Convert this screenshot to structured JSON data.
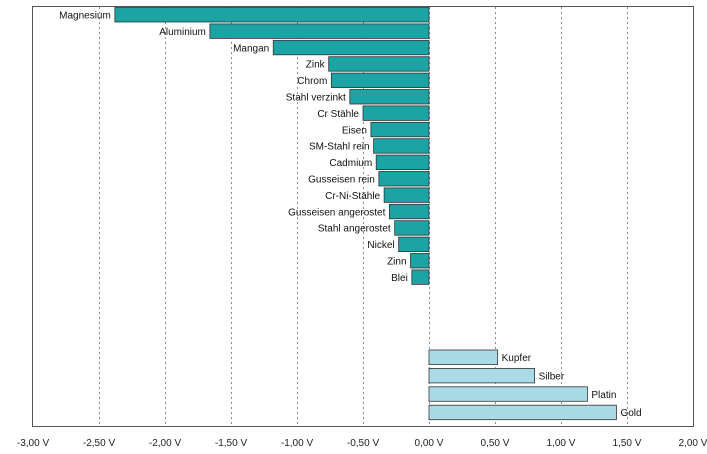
{
  "chart_data": {
    "type": "bar",
    "orientation": "horizontal",
    "title": "",
    "xlabel": "",
    "ylabel": "",
    "xlim": [
      -3,
      2
    ],
    "grid": true,
    "legend": "none",
    "x_ticks": [
      -3,
      -2.5,
      -2,
      -1.5,
      -1,
      -0.5,
      0,
      0.5,
      1,
      1.5,
      2
    ],
    "x_tick_labels": [
      "-3,00 V",
      "-2,50 V",
      "-2,00 V",
      "-1,50 V",
      "-1,00 V",
      "-0,50 V",
      "0,00 V",
      "0,50 V",
      "1,00 V",
      "1,50 V",
      "2,00 V"
    ],
    "colors": {
      "negative": "#1ca3a3",
      "positive": "#a9dbe7",
      "bar_border": "#333333"
    },
    "categories": [
      "Magnesium",
      "Aluminium",
      "Mangan",
      "Zink",
      "Chrom",
      "Stahl verzinkt",
      "Cr Stähle",
      "Eisen",
      "SM-Stahl rein",
      "Cadmium",
      "Gusseisen rein",
      "Cr-Ni-Stähle",
      "Gusseisen angerostet",
      "Stahl angerostet",
      "Nickel",
      "Zinn",
      "Blei",
      "Kupfer",
      "Silber",
      "Platin",
      "Gold"
    ],
    "values": [
      -2.38,
      -1.66,
      -1.18,
      -0.76,
      -0.74,
      -0.6,
      -0.5,
      -0.44,
      -0.42,
      -0.4,
      -0.38,
      -0.34,
      -0.3,
      -0.26,
      -0.23,
      -0.14,
      -0.13,
      0.52,
      0.8,
      1.2,
      1.42
    ],
    "bars_layout": "negative bars stacked at top, gap, positive bars at bottom"
  }
}
